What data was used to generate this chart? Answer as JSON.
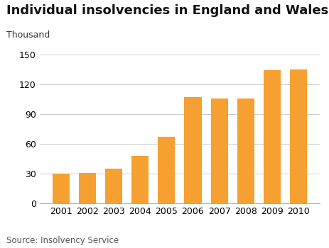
{
  "title": "Individual insolvencies in England and Wales",
  "ylabel": "Thousand",
  "source": "Source: Insolvency Service",
  "categories": [
    "2001",
    "2002",
    "2003",
    "2004",
    "2005",
    "2006",
    "2007",
    "2008",
    "2009",
    "2010"
  ],
  "values": [
    30,
    31,
    35,
    48,
    67,
    107,
    106,
    106,
    134,
    135
  ],
  "bar_color": "#F5A030",
  "ylim": [
    0,
    150
  ],
  "yticks": [
    0,
    30,
    60,
    90,
    120,
    150
  ],
  "background_color": "#ffffff",
  "grid_color": "#cccccc",
  "title_fontsize": 13,
  "label_fontsize": 9,
  "source_fontsize": 8.5
}
